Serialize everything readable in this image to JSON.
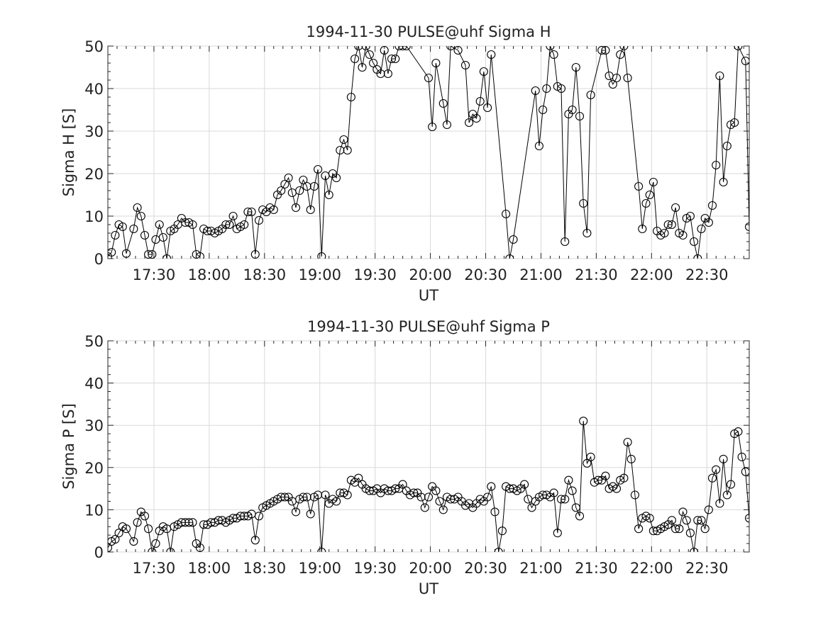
{
  "chart_data": [
    {
      "type": "line",
      "title": "1994-11-30  PULSE@uhf Sigma H",
      "xlabel": "UT",
      "ylabel": "Sigma H [S]",
      "xlim": [
        "17:05",
        "22:53"
      ],
      "ylim": [
        0,
        50
      ],
      "xticks": [
        "17:30",
        "18:00",
        "18:30",
        "19:00",
        "19:30",
        "20:00",
        "20:30",
        "21:00",
        "21:30",
        "22:00",
        "22:30"
      ],
      "yticks": [
        0,
        10,
        20,
        30,
        40,
        50
      ],
      "grid": true,
      "marker": "circle",
      "color": "#000000",
      "series": [
        {
          "x": [
            "17:05",
            "17:07",
            "17:09",
            "17:11",
            "17:13",
            "17:15",
            "17:19",
            "17:21",
            "17:23",
            "17:25",
            "17:27",
            "17:29",
            "17:31",
            "17:33",
            "17:35",
            "17:37",
            "17:39",
            "17:41",
            "17:43",
            "17:45",
            "17:47",
            "17:49",
            "17:51",
            "17:53",
            "17:55",
            "17:57",
            "17:59",
            "18:01",
            "18:03",
            "18:05",
            "18:07",
            "18:09",
            "18:11",
            "18:13",
            "18:15",
            "18:17",
            "18:19",
            "18:21",
            "18:23",
            "18:25",
            "18:27",
            "18:29",
            "18:31",
            "18:33",
            "18:35",
            "18:37",
            "18:39",
            "18:41",
            "18:43",
            "18:45",
            "18:47",
            "18:49",
            "18:51",
            "18:53",
            "18:55",
            "18:57",
            "18:59",
            "19:01",
            "19:03",
            "19:05",
            "19:07",
            "19:09",
            "19:11",
            "19:13",
            "19:15",
            "19:17",
            "19:19",
            "19:21",
            "19:23",
            "19:25",
            "19:27",
            "19:29",
            "19:31",
            "19:33",
            "19:35",
            "19:37",
            "19:39",
            "19:41",
            "19:43",
            "19:45",
            "19:47",
            "19:59",
            "20:01",
            "20:03",
            "20:07",
            "20:09",
            "20:11",
            "20:15",
            "20:19",
            "20:21",
            "20:23",
            "20:25",
            "20:27",
            "20:29",
            "20:31",
            "20:33",
            "20:41",
            "20:43",
            "20:45",
            "20:57",
            "20:59",
            "21:01",
            "21:03",
            "21:05",
            "21:07",
            "21:09",
            "21:11",
            "21:13",
            "21:15",
            "21:17",
            "21:19",
            "21:21",
            "21:23",
            "21:25",
            "21:27",
            "21:33",
            "21:35",
            "21:37",
            "21:39",
            "21:41",
            "21:43",
            "21:45",
            "21:47",
            "21:53",
            "21:55",
            "21:57",
            "21:59",
            "22:01",
            "22:03",
            "22:05",
            "22:07",
            "22:09",
            "22:11",
            "22:13",
            "22:15",
            "22:17",
            "22:19",
            "22:21",
            "22:23",
            "22:25",
            "22:27",
            "22:29",
            "22:31",
            "22:33",
            "22:35",
            "22:37",
            "22:39",
            "22:41",
            "22:43",
            "22:45",
            "22:47",
            "22:51",
            "22:53"
          ],
          "y": [
            0.5,
            1.5,
            5.5,
            8,
            7.5,
            1.2,
            7,
            12,
            10,
            5.5,
            1,
            1,
            4.5,
            8,
            5,
            0,
            6.5,
            7,
            8,
            9.5,
            8.5,
            8.5,
            8,
            1,
            0.5,
            7,
            6.5,
            6.5,
            6,
            6.5,
            7,
            8,
            8,
            10,
            7,
            7.5,
            8,
            11,
            11,
            1,
            9,
            11.5,
            11,
            12,
            11.5,
            15,
            16,
            17.5,
            19,
            15.5,
            12,
            16,
            18.5,
            17,
            11.5,
            17,
            21,
            0.5,
            19.5,
            15,
            20,
            19,
            25.5,
            28,
            25.5,
            38,
            47,
            50,
            45,
            50,
            48,
            46,
            44.5,
            43.5,
            49,
            43.5,
            47,
            47,
            50,
            50,
            50,
            42.5,
            31,
            46,
            36.5,
            31.5,
            50,
            49,
            45.5,
            32,
            34,
            33,
            37,
            44,
            35.5,
            48,
            10.5,
            0,
            4.5,
            39.5,
            26.5,
            35,
            40,
            50,
            48,
            40.5,
            40,
            4,
            34,
            35,
            45,
            33.5,
            13,
            6,
            38.5,
            49,
            49,
            43,
            41,
            42.5,
            48,
            50,
            42.5,
            17,
            7,
            13,
            15,
            18,
            6.5,
            5.5,
            6,
            8,
            8,
            12,
            6,
            5.5,
            9.5,
            10,
            4,
            0,
            7,
            9.5,
            8.5,
            12.5,
            22,
            43,
            18,
            26.5,
            31.5,
            32,
            50,
            46.5,
            7.5
          ]
        }
      ]
    },
    {
      "type": "line",
      "title": "1994-11-30  PULSE@uhf Sigma P",
      "xlabel": "UT",
      "ylabel": "Sigma P [S]",
      "xlim": [
        "17:05",
        "22:53"
      ],
      "ylim": [
        0,
        50
      ],
      "xticks": [
        "17:30",
        "18:00",
        "18:30",
        "19:00",
        "19:30",
        "20:00",
        "20:30",
        "21:00",
        "21:30",
        "22:00",
        "22:30"
      ],
      "yticks": [
        0,
        10,
        20,
        30,
        40,
        50
      ],
      "grid": true,
      "marker": "circle",
      "color": "#000000",
      "series": [
        {
          "x": [
            "17:05",
            "17:07",
            "17:09",
            "17:11",
            "17:13",
            "17:15",
            "17:19",
            "17:21",
            "17:23",
            "17:25",
            "17:27",
            "17:29",
            "17:31",
            "17:33",
            "17:35",
            "17:37",
            "17:39",
            "17:41",
            "17:43",
            "17:45",
            "17:47",
            "17:49",
            "17:51",
            "17:53",
            "17:55",
            "17:57",
            "17:59",
            "18:01",
            "18:03",
            "18:05",
            "18:07",
            "18:09",
            "18:11",
            "18:13",
            "18:15",
            "18:17",
            "18:19",
            "18:21",
            "18:23",
            "18:25",
            "18:27",
            "18:29",
            "18:31",
            "18:33",
            "18:35",
            "18:37",
            "18:39",
            "18:41",
            "18:43",
            "18:45",
            "18:47",
            "18:49",
            "18:51",
            "18:53",
            "18:55",
            "18:57",
            "18:59",
            "19:01",
            "19:03",
            "19:05",
            "19:07",
            "19:09",
            "19:11",
            "19:13",
            "19:15",
            "19:17",
            "19:19",
            "19:21",
            "19:23",
            "19:25",
            "19:27",
            "19:29",
            "19:31",
            "19:33",
            "19:35",
            "19:37",
            "19:39",
            "19:41",
            "19:43",
            "19:45",
            "19:47",
            "19:49",
            "19:51",
            "19:53",
            "19:55",
            "19:57",
            "19:59",
            "20:01",
            "20:03",
            "20:05",
            "20:07",
            "20:09",
            "20:11",
            "20:13",
            "20:15",
            "20:17",
            "20:19",
            "20:21",
            "20:23",
            "20:25",
            "20:27",
            "20:29",
            "20:31",
            "20:33",
            "20:35",
            "20:37",
            "20:39",
            "20:41",
            "20:43",
            "20:45",
            "20:47",
            "20:49",
            "20:51",
            "20:53",
            "20:55",
            "20:57",
            "20:59",
            "21:01",
            "21:03",
            "21:05",
            "21:07",
            "21:09",
            "21:11",
            "21:13",
            "21:15",
            "21:17",
            "21:19",
            "21:21",
            "21:23",
            "21:25",
            "21:27",
            "21:29",
            "21:31",
            "21:33",
            "21:35",
            "21:37",
            "21:39",
            "21:41",
            "21:43",
            "21:45",
            "21:47",
            "21:49",
            "21:51",
            "21:53",
            "21:55",
            "21:57",
            "21:59",
            "22:01",
            "22:03",
            "22:05",
            "22:07",
            "22:09",
            "22:11",
            "22:13",
            "22:15",
            "22:17",
            "22:19",
            "22:21",
            "22:23",
            "22:25",
            "22:27",
            "22:29",
            "22:31",
            "22:33",
            "22:35",
            "22:37",
            "22:39",
            "22:41",
            "22:43",
            "22:45",
            "22:47",
            "22:49",
            "22:51",
            "22:53"
          ],
          "y": [
            1,
            2.5,
            3,
            4.5,
            6,
            5.5,
            2.5,
            7,
            9.5,
            8.5,
            5.5,
            0,
            2,
            5,
            6,
            5.5,
            0,
            6,
            6.5,
            7,
            7,
            7,
            7,
            2,
            1,
            6.5,
            6.5,
            7,
            7,
            7.5,
            7.5,
            7,
            7.5,
            8,
            8,
            8.5,
            8.5,
            8.5,
            9,
            2.8,
            8.5,
            10.5,
            11,
            11.5,
            12,
            12.5,
            13,
            13,
            13,
            12,
            9.5,
            12.5,
            13,
            13,
            9,
            13,
            13.5,
            0,
            13.5,
            11.5,
            12.5,
            12,
            14,
            14,
            13.5,
            17,
            16.5,
            17.5,
            16,
            15,
            14.5,
            14.5,
            15,
            14,
            15,
            14.5,
            14.5,
            15,
            15,
            16,
            14.5,
            13.5,
            14,
            14,
            13,
            10.5,
            13,
            15.5,
            14.5,
            12,
            10,
            13,
            12.5,
            12.5,
            13,
            12,
            11,
            11.5,
            10.5,
            11.5,
            12.5,
            12,
            13,
            15.5,
            9.5,
            0,
            5,
            15.5,
            15,
            15,
            14.5,
            15,
            16,
            12.5,
            10.5,
            12,
            13,
            13.5,
            13.5,
            13,
            14,
            4.5,
            12.5,
            12.5,
            17,
            14.5,
            10.5,
            8.5,
            31,
            21,
            22.5,
            16.5,
            17,
            17,
            18,
            15,
            15.5,
            15,
            17,
            17.5,
            26,
            22,
            13.5,
            5.5,
            8,
            8.5,
            8,
            5,
            5,
            5.5,
            6,
            6.5,
            7.5,
            5.5,
            5.5,
            9.5,
            7.5,
            4.5,
            0,
            7.5,
            7.5,
            5.5,
            10,
            17.5,
            19.5,
            11.5,
            22,
            13.5,
            16,
            28,
            28.5,
            22.5,
            19,
            8
          ]
        }
      ]
    }
  ]
}
